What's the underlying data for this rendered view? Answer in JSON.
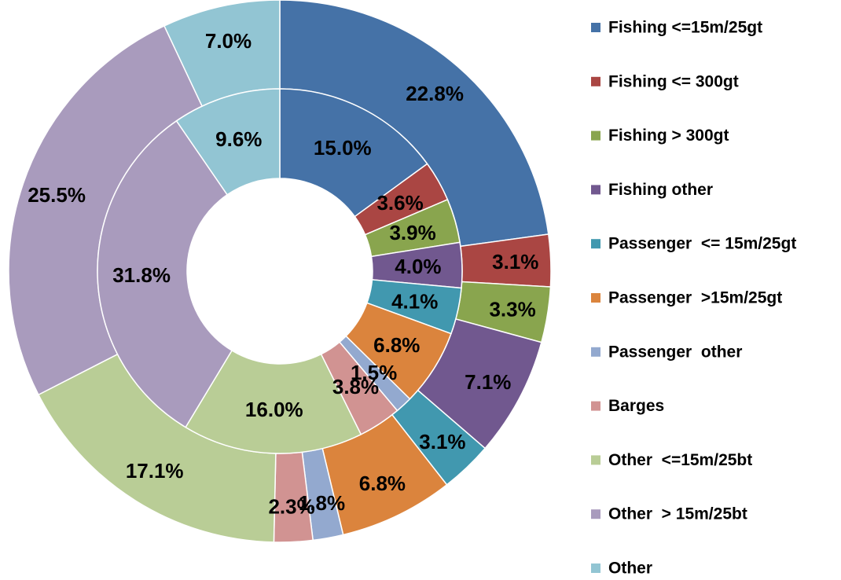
{
  "chart_data": {
    "type": "doughnut",
    "title": "",
    "legend_position": "right",
    "categories": [
      "Fishing <=15m/25gt",
      "Fishing <= 300gt",
      "Fishing > 300gt",
      "Fishing other",
      "Passenger  <= 15m/25gt",
      "Passenger  >15m/25gt",
      "Passenger  other",
      "Barges",
      "Other  <=15m/25bt",
      "Other  > 15m/25bt",
      "Other"
    ],
    "colors": [
      "#4572A7",
      "#AA4643",
      "#89A54E",
      "#71588F",
      "#4198AF",
      "#DB843D",
      "#93A9CF",
      "#D19392",
      "#B9CD96",
      "#A99BBD",
      "#92C5D3"
    ],
    "series": [
      {
        "ring": "inner",
        "values": [
          15.0,
          3.6,
          3.9,
          4.0,
          4.1,
          6.8,
          1.5,
          3.8,
          16.0,
          31.8,
          9.6
        ],
        "labels": [
          "15.0%",
          "3.6%",
          "3.9%",
          "4.0%",
          "4.1%",
          "6.8%",
          "1.5%",
          "3.8%",
          "16.0%",
          "31.8%",
          "9.6%"
        ]
      },
      {
        "ring": "outer",
        "values": [
          22.8,
          3.1,
          3.3,
          7.1,
          3.1,
          6.8,
          1.8,
          2.3,
          17.1,
          25.5,
          7.0
        ],
        "labels": [
          "22.8%",
          "3.1%",
          "3.3%",
          "7.1%",
          "3.1%",
          "6.8%",
          "1.8%",
          "2.3%",
          "17.1%",
          "25.5%",
          "7.0%"
        ]
      }
    ]
  }
}
